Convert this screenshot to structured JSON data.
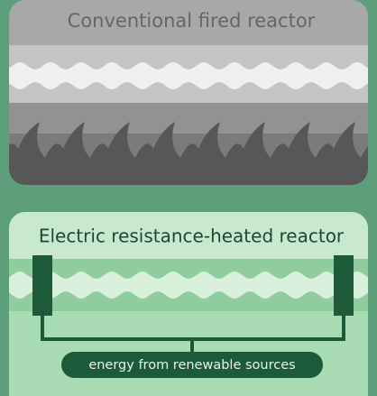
{
  "top_panel": {
    "title": "Conventional fired reactor"
  },
  "bottom_panel": {
    "title": "Electric resistance-heated reactor",
    "energy_label": "energy from renewable sources"
  }
}
